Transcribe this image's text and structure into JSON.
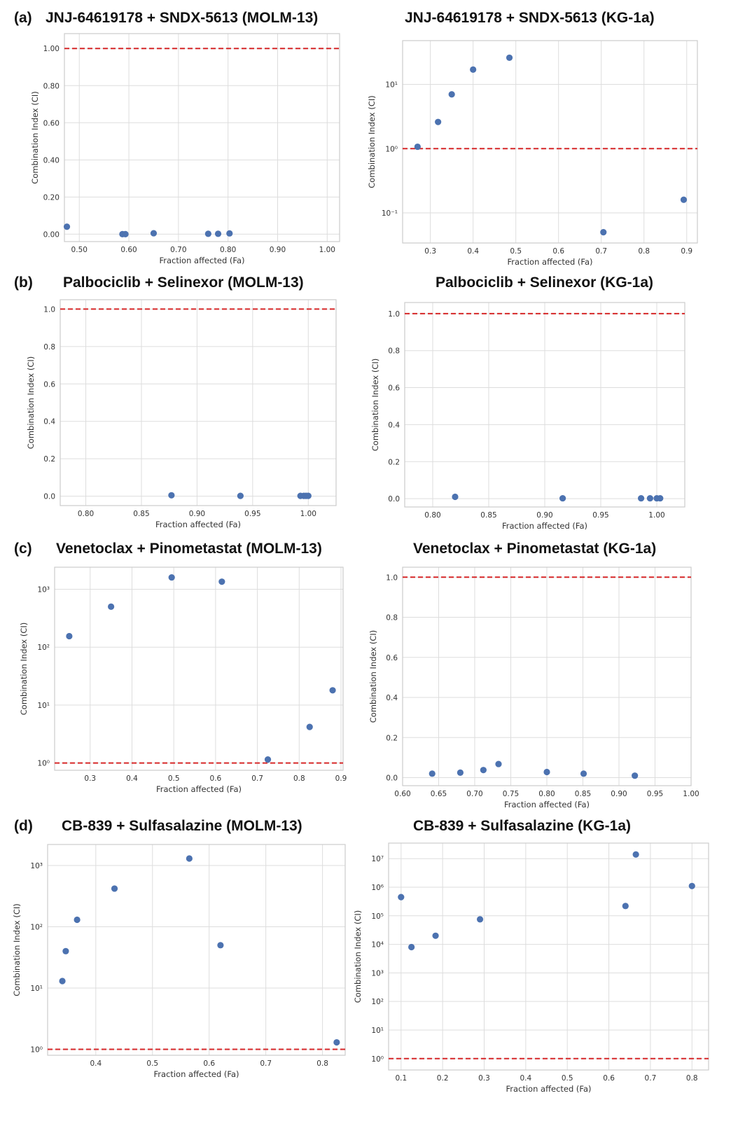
{
  "figure": {
    "panel_labels": [
      "(a)",
      "(b)",
      "(c)",
      "(d)"
    ],
    "colors": {
      "point": "#4c72b0",
      "reference_line": "#d62728",
      "grid": "#dddddd",
      "frame": "#cccccc"
    }
  },
  "chart_data": [
    {
      "type": "scatter",
      "title": "JNJ-64619178 + SNDX-5613 (MOLM-13)",
      "xlabel": "Fraction affected (Fa)",
      "ylabel": "Combination Index (CI)",
      "yscale": "linear",
      "xlim": [
        0.47,
        1.025
      ],
      "ylim": [
        -0.04,
        1.08
      ],
      "xticks": [
        0.5,
        0.6,
        0.7,
        0.8,
        0.9,
        1.0
      ],
      "xtick_labels": [
        "0.50",
        "0.60",
        "0.70",
        "0.80",
        "0.90",
        "1.00"
      ],
      "yticks": [
        0,
        0.2,
        0.4,
        0.6,
        0.8,
        1.0
      ],
      "ytick_labels": [
        "0.00",
        "0.20",
        "0.40",
        "0.60",
        "0.80",
        "1.00"
      ],
      "reference_line": 1.0,
      "grid": true,
      "x": [
        0.475,
        0.587,
        0.593,
        0.65,
        0.76,
        0.78,
        0.803
      ],
      "y": [
        0.04,
        0.0,
        0.0,
        0.005,
        0.002,
        0.002,
        0.004
      ]
    },
    {
      "type": "scatter",
      "title": "JNJ-64619178 + SNDX-5613 (KG-1a)",
      "xlabel": "Fraction affected (Fa)",
      "ylabel": "Combination Index (CI)",
      "yscale": "log",
      "xlim": [
        0.235,
        0.925
      ],
      "ylim": [
        0.034,
        48
      ],
      "xticks": [
        0.3,
        0.4,
        0.5,
        0.6,
        0.7,
        0.8,
        0.9
      ],
      "xtick_labels": [
        "0.3",
        "0.4",
        "0.5",
        "0.6",
        "0.7",
        "0.8",
        "0.9"
      ],
      "yticks": [
        0.1,
        1,
        10
      ],
      "ytick_labels": [
        "10⁻¹",
        "10⁰",
        "10¹"
      ],
      "reference_line": 1.0,
      "grid": true,
      "x": [
        0.27,
        0.318,
        0.35,
        0.4,
        0.485,
        0.705,
        0.893
      ],
      "y": [
        1.07,
        2.6,
        7.0,
        17.0,
        26.0,
        0.05,
        0.16
      ]
    },
    {
      "type": "scatter",
      "title": "Palbociclib + Selinexor (MOLM-13)",
      "xlabel": "Fraction affected (Fa)",
      "ylabel": "Combination Index (CI)",
      "yscale": "linear",
      "xlim": [
        0.777,
        1.025
      ],
      "ylim": [
        -0.05,
        1.05
      ],
      "xticks": [
        0.8,
        0.85,
        0.9,
        0.95,
        1.0
      ],
      "xtick_labels": [
        "0.80",
        "0.85",
        "0.90",
        "0.95",
        "1.00"
      ],
      "yticks": [
        0,
        0.2,
        0.4,
        0.6,
        0.8,
        1.0
      ],
      "ytick_labels": [
        "0.0",
        "0.2",
        "0.4",
        "0.6",
        "0.8",
        "1.0"
      ],
      "reference_line": 1.0,
      "grid": true,
      "x": [
        0.877,
        0.939,
        0.993,
        0.996,
        0.998,
        1.0
      ],
      "y": [
        0.005,
        0.002,
        0.002,
        0.002,
        0.002,
        0.002
      ]
    },
    {
      "type": "scatter",
      "title": "Palbociclib + Selinexor (KG-1a)",
      "xlabel": "Fraction affected (Fa)",
      "ylabel": "Combination Index (CI)",
      "yscale": "linear",
      "xlim": [
        0.775,
        1.025
      ],
      "ylim": [
        -0.045,
        1.06
      ],
      "xticks": [
        0.8,
        0.85,
        0.9,
        0.95,
        1.0
      ],
      "xtick_labels": [
        "0.80",
        "0.85",
        "0.90",
        "0.95",
        "1.00"
      ],
      "yticks": [
        0,
        0.2,
        0.4,
        0.6,
        0.8,
        1.0
      ],
      "ytick_labels": [
        "0.0",
        "0.2",
        "0.4",
        "0.6",
        "0.8",
        "1.0"
      ],
      "reference_line": 1.0,
      "grid": true,
      "x": [
        0.82,
        0.916,
        0.986,
        0.994,
        1.0,
        1.003
      ],
      "y": [
        0.01,
        0.002,
        0.002,
        0.002,
        0.002,
        0.002
      ]
    },
    {
      "type": "scatter",
      "title": "Venetoclax + Pinometastat (MOLM-13)",
      "xlabel": "Fraction affected (Fa)",
      "ylabel": "Combination Index (CI)",
      "yscale": "log",
      "xlim": [
        0.215,
        0.905
      ],
      "ylim": [
        0.75,
        2400
      ],
      "xticks": [
        0.3,
        0.4,
        0.5,
        0.6,
        0.7,
        0.8,
        0.9
      ],
      "xtick_labels": [
        "0.3",
        "0.4",
        "0.5",
        "0.6",
        "0.7",
        "0.8",
        "0.9"
      ],
      "yticks": [
        1,
        10,
        100,
        1000
      ],
      "ytick_labels": [
        "10⁰",
        "10¹",
        "10²",
        "10³"
      ],
      "reference_line": 1.0,
      "grid": true,
      "x": [
        0.25,
        0.35,
        0.495,
        0.615,
        0.725,
        0.825,
        0.88
      ],
      "y": [
        155,
        500,
        1600,
        1350,
        1.15,
        4.2,
        18.0
      ]
    },
    {
      "type": "scatter",
      "title": "Venetoclax + Pinometastat (KG-1a)",
      "xlabel": "Fraction affected (Fa)",
      "ylabel": "Combination Index (CI)",
      "yscale": "linear",
      "xlim": [
        0.6,
        1.0
      ],
      "ylim": [
        -0.04,
        1.05
      ],
      "xticks": [
        0.6,
        0.65,
        0.7,
        0.75,
        0.8,
        0.85,
        0.9,
        0.95,
        1.0
      ],
      "xtick_labels": [
        "0.60",
        "0.65",
        "0.70",
        "0.75",
        "0.80",
        "0.85",
        "0.90",
        "0.95",
        "1.00"
      ],
      "yticks": [
        0,
        0.2,
        0.4,
        0.6,
        0.8,
        1.0
      ],
      "ytick_labels": [
        "0.0",
        "0.2",
        "0.4",
        "0.6",
        "0.8",
        "1.0"
      ],
      "reference_line": 1.0,
      "grid": true,
      "x": [
        0.641,
        0.68,
        0.712,
        0.733,
        0.8,
        0.851,
        0.922
      ],
      "y": [
        0.02,
        0.025,
        0.038,
        0.068,
        0.028,
        0.02,
        0.01
      ]
    },
    {
      "type": "scatter",
      "title": "CB-839 + Sulfasalazine (MOLM-13)",
      "xlabel": "Fraction affected (Fa)",
      "ylabel": "Combination Index (CI)",
      "yscale": "log",
      "xlim": [
        0.315,
        0.84
      ],
      "ylim": [
        0.8,
        2200
      ],
      "xticks": [
        0.4,
        0.5,
        0.6,
        0.7,
        0.8
      ],
      "xtick_labels": [
        "0.4",
        "0.5",
        "0.6",
        "0.7",
        "0.8"
      ],
      "yticks": [
        1,
        10,
        100,
        1000
      ],
      "ytick_labels": [
        "10⁰",
        "10¹",
        "10²",
        "10³"
      ],
      "reference_line": 1.0,
      "grid": true,
      "x": [
        0.341,
        0.347,
        0.367,
        0.433,
        0.565,
        0.62,
        0.825
      ],
      "y": [
        13.0,
        40.0,
        130.0,
        420.0,
        1300.0,
        50.0,
        1.3
      ]
    },
    {
      "type": "scatter",
      "title": "CB-839 + Sulfasalazine (KG-1a)",
      "xlabel": "Fraction affected (Fa)",
      "ylabel": "Combination Index (CI)",
      "yscale": "log",
      "xlim": [
        0.07,
        0.84
      ],
      "ylim": [
        0.4,
        35000000
      ],
      "xticks": [
        0.1,
        0.2,
        0.3,
        0.4,
        0.5,
        0.6,
        0.7,
        0.8
      ],
      "xtick_labels": [
        "0.1",
        "0.2",
        "0.3",
        "0.4",
        "0.5",
        "0.6",
        "0.7",
        "0.8"
      ],
      "yticks": [
        1,
        10,
        100,
        1000,
        10000,
        100000,
        1000000,
        10000000
      ],
      "ytick_labels": [
        "10⁰",
        "10¹",
        "10²",
        "10³",
        "10⁴",
        "10⁵",
        "10⁶",
        "10⁷"
      ],
      "reference_line": 1.0,
      "grid": true,
      "x": [
        0.1,
        0.125,
        0.183,
        0.29,
        0.64,
        0.665,
        0.8
      ],
      "y": [
        450000,
        8000,
        20000,
        75000,
        220000,
        14000000,
        1100000
      ]
    }
  ]
}
